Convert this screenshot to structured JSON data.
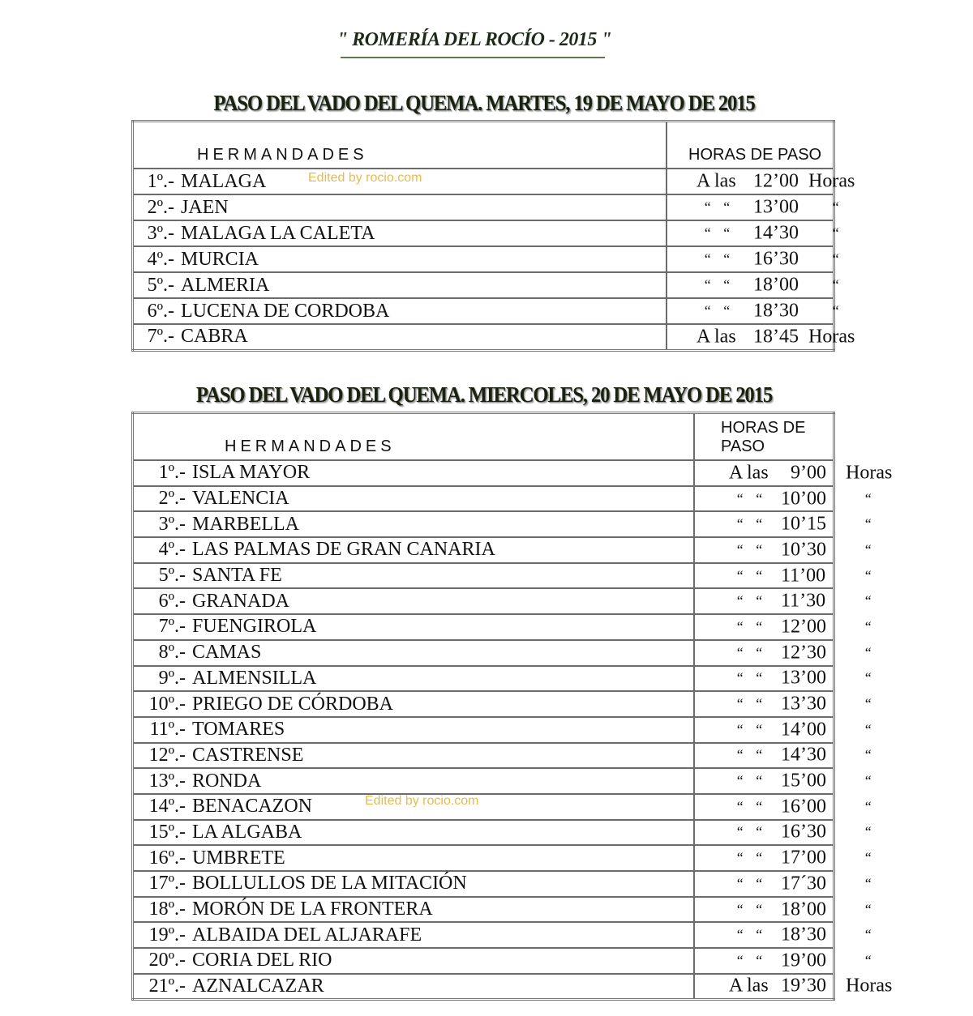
{
  "title": "\" ROMERÍA DEL ROCÍO - 2015 \"",
  "watermark": "Edited by rocio.com",
  "colors": {
    "title_rule": "#5b7a4a",
    "watermark": "#e2b030",
    "grid": "#6b6b6b"
  },
  "tables": [
    {
      "heading": "PASO DEL VADO DEL QUEMA.  MARTES, 19 DE MAYO DE 2015",
      "col1": "HERMANDADES",
      "col2": "HORAS DE PASO",
      "rows": [
        {
          "num": "1º.-",
          "name": "MALAGA",
          "prefix": "A las",
          "time": "12’00",
          "suffix": "Horas"
        },
        {
          "num": "2º.-",
          "name": "JAEN",
          "prefix": "“   “",
          "time": "13’00",
          "suffix": "“"
        },
        {
          "num": "3º.-",
          "name": "MALAGA LA CALETA",
          "prefix": "“   “",
          "time": "14’30",
          "suffix": "“"
        },
        {
          "num": "4º.-",
          "name": "MURCIA",
          "prefix": "“   “",
          "time": "16’30",
          "suffix": "“"
        },
        {
          "num": "5º.-",
          "name": "ALMERIA",
          "prefix": "“   “",
          "time": "18’00",
          "suffix": "“"
        },
        {
          "num": "6º.-",
          "name": "LUCENA DE CORDOBA",
          "prefix": "“   “",
          "time": "18’30",
          "suffix": "“"
        },
        {
          "num": "7º.-",
          "name": "CABRA",
          "prefix": "A las",
          "time": "18’45",
          "suffix": "Horas"
        }
      ]
    },
    {
      "heading": "PASO DEL VADO DEL QUEMA.  MIERCOLES, 20 DE MAYO DE 2015",
      "col1": "HERMANDADES",
      "col2": "HORAS DE PASO",
      "rows": [
        {
          "num": "1º.-",
          "name": "ISLA MAYOR",
          "prefix": "A las",
          "time": "9’00",
          "suffix": "Horas"
        },
        {
          "num": "2º.-",
          "name": "VALENCIA",
          "prefix": "“   “",
          "time": "10’00",
          "suffix": "“"
        },
        {
          "num": "3º.-",
          "name": "MARBELLA",
          "prefix": "“   “",
          "time": "10’15",
          "suffix": "“"
        },
        {
          "num": "4º.-",
          "name": "LAS PALMAS DE GRAN CANARIA",
          "prefix": "“   “",
          "time": "10’30",
          "suffix": "“"
        },
        {
          "num": "5º.-",
          "name": "SANTA FE",
          "prefix": "“   “",
          "time": "11’00",
          "suffix": "“"
        },
        {
          "num": "6º.-",
          "name": "GRANADA",
          "prefix": "“   “",
          "time": "11’30",
          "suffix": "“"
        },
        {
          "num": "7º.-",
          "name": "FUENGIROLA",
          "prefix": "“   “",
          "time": "12’00",
          "suffix": "“"
        },
        {
          "num": "8º.-",
          "name": "CAMAS",
          "prefix": "“   “",
          "time": "12’30",
          "suffix": "“"
        },
        {
          "num": "9º.-",
          "name": "ALMENSILLA",
          "prefix": "“   “",
          "time": "13’00",
          "suffix": "“"
        },
        {
          "num": "10º.-",
          "name": "PRIEGO DE CÓRDOBA",
          "prefix": "“   “",
          "time": "13’30",
          "suffix": "“"
        },
        {
          "num": "11º.-",
          "name": "TOMARES",
          "prefix": "“   “",
          "time": "14’00",
          "suffix": "“"
        },
        {
          "num": "12º.-",
          "name": "CASTRENSE",
          "prefix": "“   “",
          "time": "14’30",
          "suffix": "“"
        },
        {
          "num": "13º.-",
          "name": "RONDA",
          "prefix": "“   “",
          "time": "15’00",
          "suffix": "“"
        },
        {
          "num": "14º.-",
          "name": "BENACAZON",
          "prefix": "“   “",
          "time": "16’00",
          "suffix": "“"
        },
        {
          "num": "15º.-",
          "name": "LA ALGABA",
          "prefix": "“   “",
          "time": "16’30",
          "suffix": "“"
        },
        {
          "num": "16º.-",
          "name": "UMBRETE",
          "prefix": "“   “",
          "time": "17’00",
          "suffix": "“"
        },
        {
          "num": "17º.-",
          "name": "BOLLULLOS DE LA MITACIÓN",
          "prefix": "“   “",
          "time": "17´30",
          "suffix": "“"
        },
        {
          "num": "18º.-",
          "name": "MORÓN DE LA FRONTERA",
          "prefix": "“   “",
          "time": "18’00",
          "suffix": "“"
        },
        {
          "num": "19º.-",
          "name": "ALBAIDA DEL ALJARAFE",
          "prefix": "“   “",
          "time": "18’30",
          "suffix": "“"
        },
        {
          "num": "20º.-",
          "name": "CORIA DEL RIO",
          "prefix": "“   “",
          "time": "19’00",
          "suffix": "“"
        },
        {
          "num": "21º.-",
          "name": "AZNALCAZAR",
          "prefix": "A las",
          "time": "19’30",
          "suffix": "Horas"
        }
      ]
    }
  ]
}
